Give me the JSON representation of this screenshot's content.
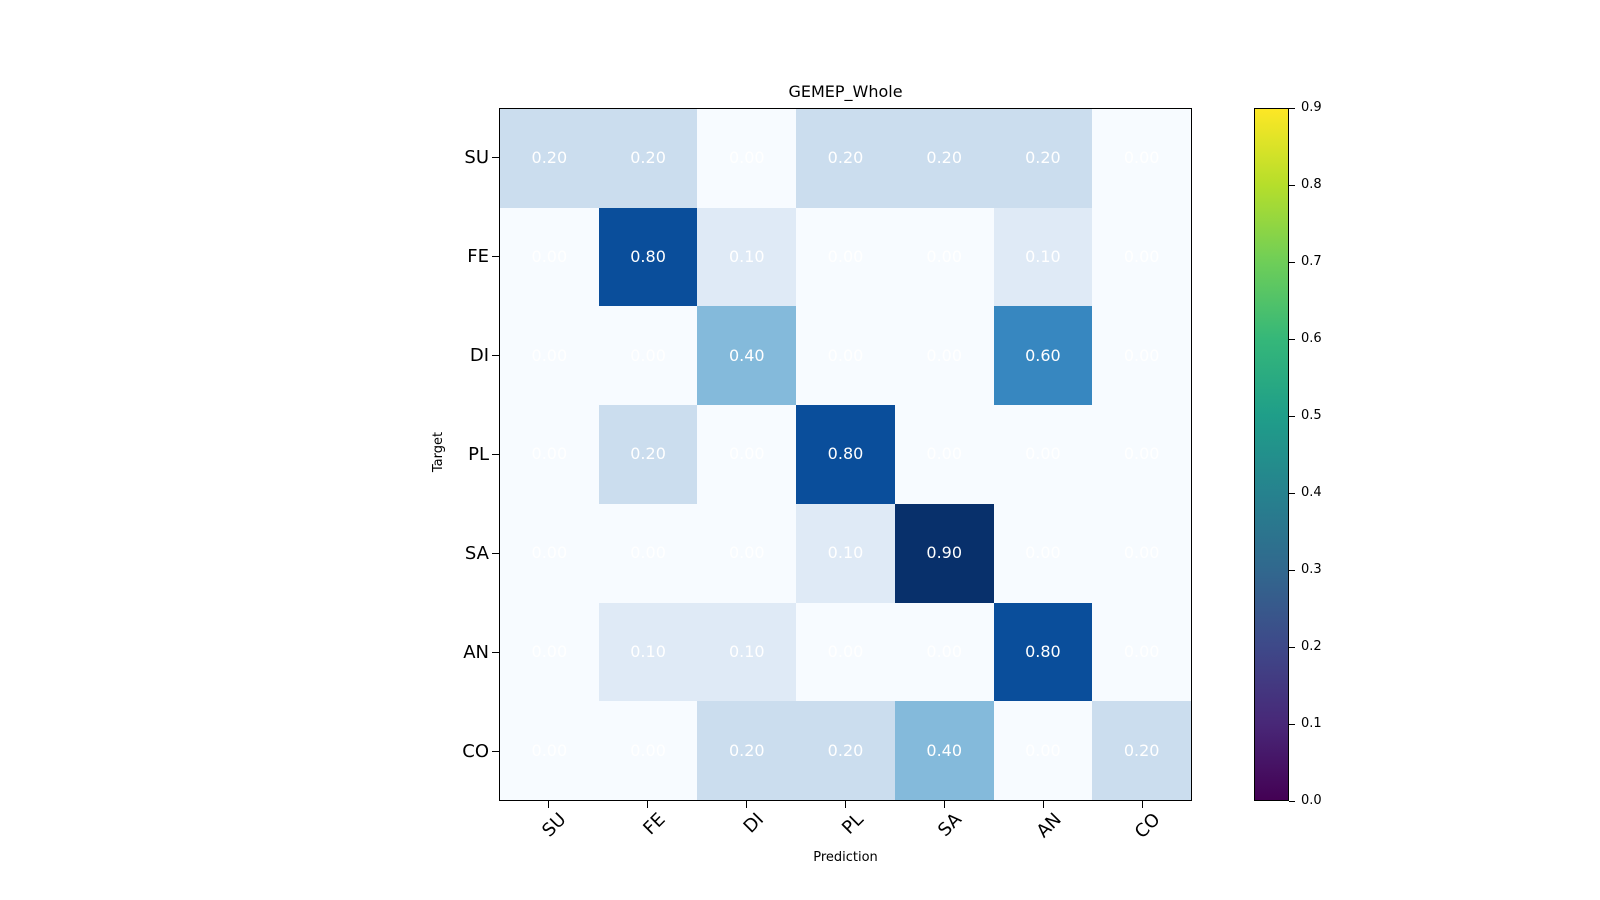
{
  "chart_data": {
    "type": "heatmap",
    "title": "GEMEP_Whole",
    "xlabel": "Prediction",
    "ylabel": "Target",
    "x_tick_labels": [
      "SU",
      "FE",
      "DI",
      "PL",
      "SA",
      "AN",
      "CO"
    ],
    "y_tick_labels": [
      "SU",
      "FE",
      "DI",
      "PL",
      "SA",
      "AN",
      "CO"
    ],
    "matrix": [
      [
        0.2,
        0.2,
        0.0,
        0.2,
        0.2,
        0.2,
        0.0
      ],
      [
        0.0,
        0.8,
        0.1,
        0.0,
        0.0,
        0.1,
        0.0
      ],
      [
        0.0,
        0.0,
        0.4,
        0.0,
        0.0,
        0.6,
        0.0
      ],
      [
        0.0,
        0.2,
        0.0,
        0.8,
        0.0,
        0.0,
        0.0
      ],
      [
        0.0,
        0.0,
        0.0,
        0.1,
        0.9,
        0.0,
        0.0
      ],
      [
        0.0,
        0.1,
        0.1,
        0.0,
        0.0,
        0.8,
        0.0
      ],
      [
        0.0,
        0.0,
        0.2,
        0.2,
        0.4,
        0.0,
        0.2
      ]
    ],
    "vmin": 0.0,
    "vmax": 0.9,
    "cell_text_color": "#ffffff",
    "cell_colors_by_value": {
      "0.00": "#f7fbff",
      "0.10": "#dfeaf6",
      "0.20": "#cbddee",
      "0.40": "#84badb",
      "0.60": "#3787c0",
      "0.80": "#0a4e9b",
      "0.90": "#08306b"
    },
    "colorbar": {
      "tick_labels": [
        "0.9",
        "0.8",
        "0.7",
        "0.6",
        "0.5",
        "0.4",
        "0.3",
        "0.2",
        "0.1",
        "0.0"
      ],
      "gradient_bottom_to_top": [
        "#440154",
        "#482878",
        "#3e4989",
        "#31688e",
        "#26828e",
        "#1f9e89",
        "#35b779",
        "#6ece58",
        "#b5de2b",
        "#fde725"
      ]
    }
  }
}
